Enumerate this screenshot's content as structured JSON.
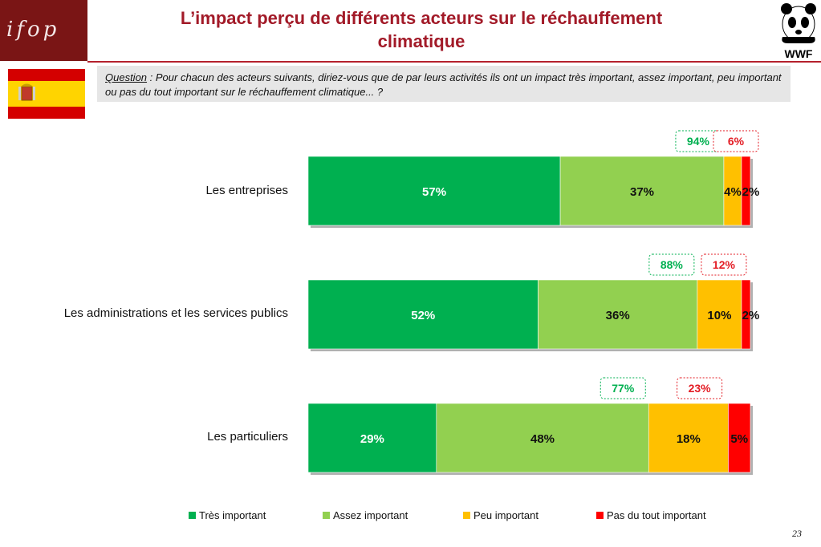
{
  "header": {
    "ifop_logo_text": "ifop",
    "title_line1": "L’impact perçu de différents acteurs sur le réchauffement",
    "title_line2": "climatique",
    "wwf_logo_text": "WWF"
  },
  "question": {
    "label": "Question",
    "text": " : Pour chacun des acteurs suivants, diriez-vous que de par leurs activités ils ont un impact très important, assez important, peu important ou pas du tout important sur le réchauffement climatique... ?"
  },
  "colors": {
    "tres": "#00b050",
    "assez": "#92d050",
    "peu": "#ffc000",
    "pas": "#ff0000",
    "total_important": "#00b050",
    "total_not": "#e31b23"
  },
  "chart_data": {
    "type": "bar",
    "orientation": "horizontal-stacked-100",
    "categories": [
      "Les entreprises",
      "Les administrations et les services publics",
      "Les particuliers"
    ],
    "series": [
      {
        "name": "Très important",
        "values": [
          57,
          52,
          29
        ]
      },
      {
        "name": "Assez important",
        "values": [
          37,
          36,
          48
        ]
      },
      {
        "name": "Peu important",
        "values": [
          4,
          10,
          18
        ]
      },
      {
        "name": "Pas du tout important",
        "values": [
          2,
          2,
          5
        ]
      }
    ],
    "value_labels": [
      [
        "57%",
        "37%",
        "4%",
        "2%"
      ],
      [
        "52%",
        "36%",
        "10%",
        "2%"
      ],
      [
        "29%",
        "48%",
        "18%",
        "5%"
      ]
    ],
    "totals_important": [
      "94%",
      "88%",
      "77%"
    ],
    "totals_not_important": [
      "6%",
      "12%",
      "23%"
    ],
    "xlim": [
      0,
      100
    ],
    "legend_position": "bottom"
  },
  "footer": {
    "page_number": "23"
  }
}
